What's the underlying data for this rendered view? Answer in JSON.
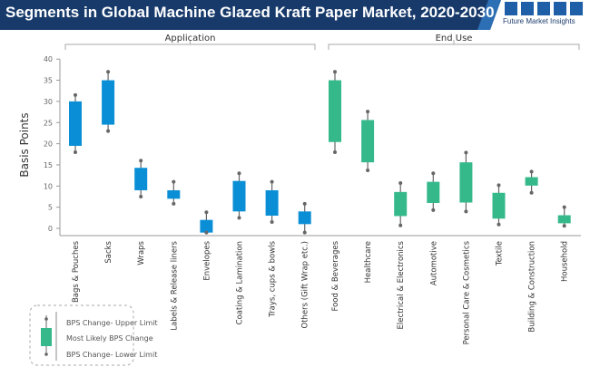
{
  "header": {
    "title": "Segments in Global Machine Glazed Kraft Paper Market, 2020-2030",
    "logo_text": "Future Market Insights"
  },
  "colors": {
    "header_bg": "#173a6b",
    "application": "#0a8fd6",
    "end_use": "#35b98a",
    "whisker": "#666666"
  },
  "legend": {
    "upper": "BPS Change- Upper Limit",
    "box": "Most Likely BPS Change",
    "lower": "BPS Change- Lower Limit"
  },
  "chart_data": {
    "type": "box",
    "ylabel": "Basis Points",
    "ylim": [
      -2,
      40
    ],
    "yticks": [
      0,
      5,
      10,
      15,
      20,
      25,
      30,
      35,
      40
    ],
    "groups": [
      {
        "name": "Application",
        "categories": [
          "Bags & Pouches",
          "Sacks",
          "Wraps",
          "Labels & Release liners",
          "Envelopes",
          "Coating & Lamination",
          "Trays, cups & bowls",
          "Others (Gift Wrap etc.)"
        ],
        "upper": [
          31.5,
          37,
          16,
          11,
          3.8,
          13,
          11,
          5.8
        ],
        "box_high": [
          30,
          35,
          14.3,
          9,
          2,
          11.2,
          9,
          4
        ],
        "box_low": [
          19.5,
          24.5,
          9,
          7,
          -1,
          4,
          3,
          1
        ],
        "lower": [
          18,
          23,
          7.5,
          5.8,
          -1,
          2.5,
          1.5,
          -1
        ]
      },
      {
        "name": "End Use",
        "categories": [
          "Food & Beverages",
          "Healthcare",
          "Electrical & Electronics",
          "Automotive",
          "Personal Care & Cosmetics",
          "Textile",
          "Building & Construction",
          "Household"
        ],
        "upper": [
          37,
          27.6,
          10.7,
          13,
          17.9,
          10.2,
          13.4,
          5
        ],
        "box_high": [
          35,
          25.6,
          8.6,
          11,
          15.6,
          8.4,
          12.1,
          3.1
        ],
        "box_low": [
          20.4,
          15.6,
          2.9,
          6,
          6.1,
          2.3,
          10.1,
          1.2
        ],
        "lower": [
          18,
          13.7,
          0.7,
          4.3,
          4,
          0.9,
          8.4,
          0.6
        ]
      }
    ]
  }
}
